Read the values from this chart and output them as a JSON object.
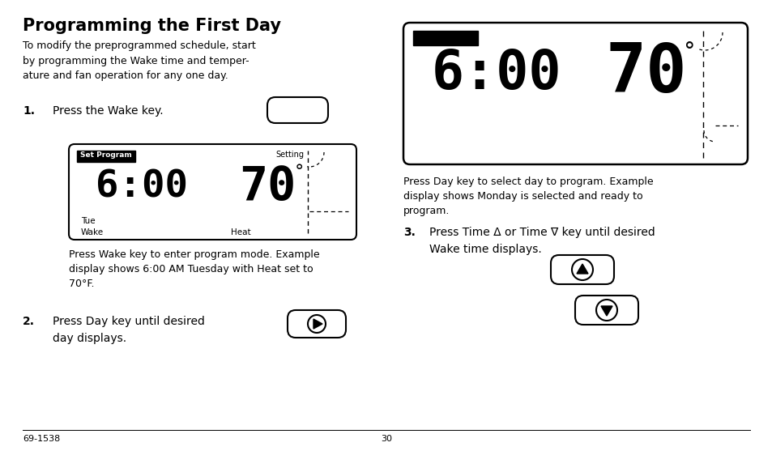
{
  "title": "Programming the First Day",
  "intro_text": "To modify the preprogrammed schedule, start\nby programming the Wake time and temper-\nature and fan operation for any one day.",
  "step1_label": "1.",
  "step1_text": "Press the Wake key.",
  "step2_label": "2.",
  "step2_text": "Press Day key until desired\nday displays.",
  "step3_label": "3.",
  "step3_text": "Press Time Δ or Time ∇ key until desired\nWake time displays.",
  "caption1": "Press Wake key to enter program mode. Example\ndisplay shows 6:00 AM Tuesday with Heat set to\n70°F.",
  "caption2": "Press Day key to select day to program. Example\ndisplay shows Monday is selected and ready to\nprogram.",
  "footer_left": "69-1538",
  "footer_center": "30",
  "bg_color": "#ffffff",
  "text_color": "#000000"
}
